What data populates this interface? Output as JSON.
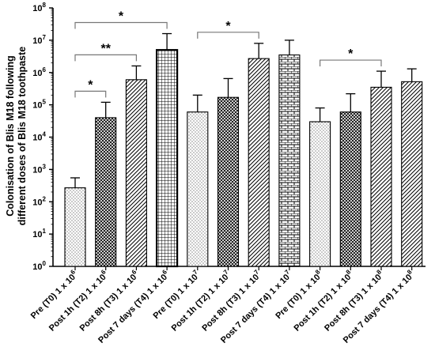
{
  "chart_data": {
    "type": "bar",
    "title": "",
    "ylabel": [
      "Colonisation of Blis M18 following",
      "different doses of Blis M18 toothpaste"
    ],
    "xlabel": "",
    "yscale": "log",
    "ylim": [
      1,
      100000000
    ],
    "ytick_values": [
      1,
      10,
      100,
      1000,
      10000,
      100000,
      1000000,
      10000000,
      100000000
    ],
    "ytick_base": "10",
    "ytick_exponents": [
      "0",
      "1",
      "2",
      "3",
      "4",
      "5",
      "6",
      "7",
      "8"
    ],
    "categories": [
      {
        "base": "Pre (T0) 1 x 10",
        "exp": "6"
      },
      {
        "base": "Post 1h (T2) 1 x 10",
        "exp": "6"
      },
      {
        "base": "Post 8h (T3) 1 x 10",
        "exp": "6"
      },
      {
        "base": "Post 7 days (T4) 1 x 10",
        "exp": "6"
      },
      {
        "base": "Pre (T0) 1 x 10",
        "exp": "7"
      },
      {
        "base": "Post 1h (T2) 1 x 10",
        "exp": "7"
      },
      {
        "base": "Post 8h (T3) 1 x 10",
        "exp": "7"
      },
      {
        "base": "Post 7 days (T4) 1 x 10",
        "exp": "7"
      },
      {
        "base": "Pre (T0) 1 x 10",
        "exp": "8"
      },
      {
        "base": "Post 1h (T2) 1 x 10",
        "exp": "8"
      },
      {
        "base": "Post 8h (T3) 1 x 10",
        "exp": "8"
      },
      {
        "base": "Post 7 days (T4) 1 x 10",
        "exp": "8"
      }
    ],
    "values": [
      270,
      40000,
      600000,
      5000000,
      60000,
      170000,
      2700000,
      3500000,
      30000,
      60000,
      350000,
      520000
    ],
    "error_upper": [
      550,
      120000,
      1600000,
      16000000,
      200000,
      650000,
      8000000,
      10000000,
      80000,
      220000,
      1100000,
      1300000
    ],
    "patterns": [
      "dots",
      "crosshatch",
      "diagonal",
      "grid",
      "dots",
      "crosshatch",
      "diagonal",
      "bricks",
      "dots",
      "crosshatch",
      "diagonal",
      "diagonal"
    ],
    "significance": [
      {
        "from": 0,
        "to": 1,
        "label": "*"
      },
      {
        "from": 0,
        "to": 2,
        "label": "**"
      },
      {
        "from": 0,
        "to": 3,
        "label": "*"
      },
      {
        "from": 4,
        "to": 6,
        "label": "*"
      },
      {
        "from": 8,
        "to": 10,
        "label": "*"
      }
    ],
    "grid": false,
    "legend": "none"
  }
}
